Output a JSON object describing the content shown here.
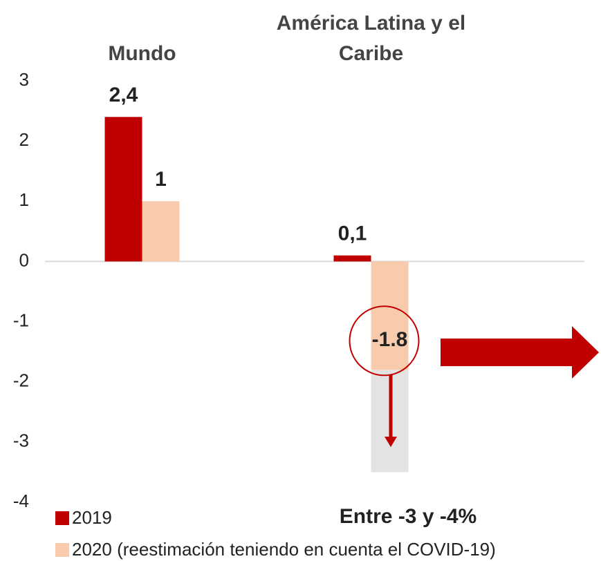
{
  "chart_data": {
    "type": "bar",
    "categories": [
      "Mundo",
      "América Latina y el Caribe"
    ],
    "series": [
      {
        "name": "2019",
        "color": "#c00000",
        "values": [
          2.4,
          0.1
        ],
        "value_labels": [
          "2,4",
          "0,1"
        ]
      },
      {
        "name": "2020 (reestimación teniendo en cuenta el COVID-19)",
        "color": "#f8cbad",
        "values": [
          1,
          -1.8
        ]
      }
    ],
    "range_to": -3.5,
    "range_color": "#e3e3e3",
    "annotation": "Entre -3 y -4%",
    "ylim": [
      -4,
      3
    ],
    "yticks": [
      -4,
      -3,
      -2,
      -1,
      0,
      1,
      2,
      3
    ]
  }
}
